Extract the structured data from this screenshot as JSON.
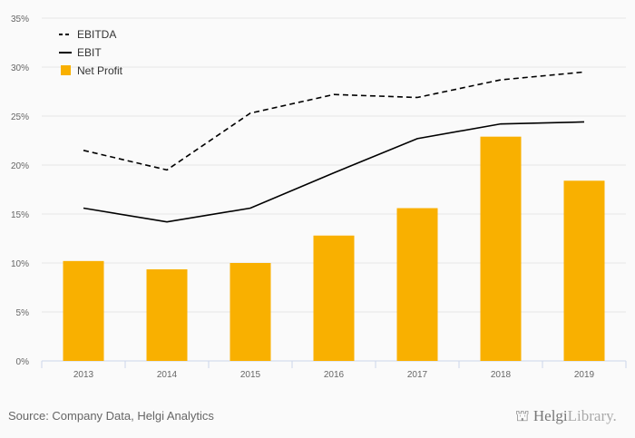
{
  "chart_data": {
    "type": "bar",
    "categories": [
      "2013",
      "2014",
      "2015",
      "2016",
      "2017",
      "2018",
      "2019"
    ],
    "series": [
      {
        "name": "EBITDA",
        "kind": "line",
        "style": "dashed",
        "values": [
          21.5,
          19.5,
          25.3,
          27.2,
          26.9,
          28.7,
          29.5
        ]
      },
      {
        "name": "EBIT",
        "kind": "line",
        "style": "solid",
        "values": [
          15.6,
          14.2,
          15.6,
          19.2,
          22.7,
          24.2,
          24.4
        ]
      },
      {
        "name": "Net Profit",
        "kind": "bar",
        "values": [
          10.2,
          9.35,
          10.0,
          12.8,
          15.6,
          22.9,
          18.4
        ]
      }
    ],
    "ylim": [
      0,
      35
    ],
    "yticks": [
      "0%",
      "5%",
      "10%",
      "15%",
      "20%",
      "25%",
      "30%",
      "35%"
    ],
    "grid": true,
    "legend": "top-left",
    "colors": {
      "bar": "#f9b000",
      "line": "#000000"
    }
  },
  "footer": {
    "source": "Source: Company Data, Helgi Analytics",
    "logo_bold": "Helgi",
    "logo_light": "Library."
  }
}
